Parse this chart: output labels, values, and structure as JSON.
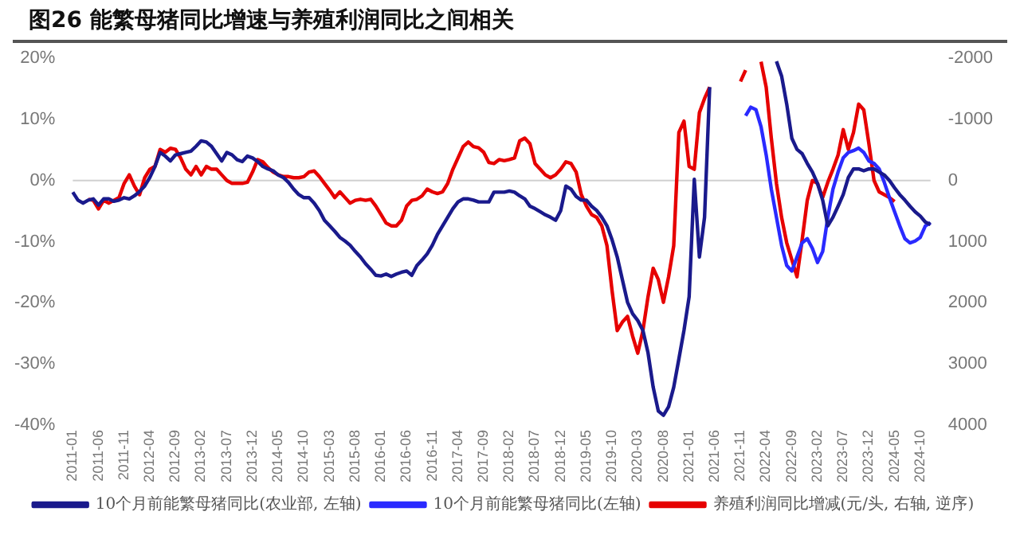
{
  "chart_data": {
    "type": "line",
    "title": "图26 能繁母猪同比增速与养殖利润同比之间相关",
    "categories": [
      "2011-01",
      null,
      null,
      null,
      null,
      "2011-06",
      null,
      null,
      null,
      null,
      "2011-11",
      null,
      null,
      null,
      null,
      "2012-04",
      null,
      null,
      null,
      null,
      "2012-09",
      null,
      null,
      null,
      null,
      "2013-02",
      null,
      null,
      null,
      null,
      "2013-07",
      null,
      null,
      null,
      null,
      "2013-12",
      null,
      null,
      null,
      null,
      "2014-05",
      null,
      null,
      null,
      null,
      "2014-10",
      null,
      null,
      null,
      null,
      "2015-03",
      null,
      null,
      null,
      null,
      "2015-08",
      null,
      null,
      null,
      null,
      "2016-01",
      null,
      null,
      null,
      null,
      "2016-06",
      null,
      null,
      null,
      null,
      "2016-11",
      null,
      null,
      null,
      null,
      "2017-04",
      null,
      null,
      null,
      null,
      "2017-09",
      null,
      null,
      null,
      null,
      "2018-02",
      null,
      null,
      null,
      null,
      "2018-07",
      null,
      null,
      null,
      null,
      "2018-12",
      null,
      null,
      null,
      null,
      "2019-05",
      null,
      null,
      null,
      null,
      "2019-10",
      null,
      null,
      null,
      null,
      "2020-03",
      null,
      null,
      null,
      null,
      "2020-08",
      null,
      null,
      null,
      null,
      "2021-01",
      null,
      null,
      null,
      null,
      "2021-06",
      null,
      null,
      null,
      null,
      "2021-11",
      null,
      null,
      null,
      null,
      "2022-04",
      null,
      null,
      null,
      null,
      "2022-09",
      null,
      null,
      null,
      null,
      "2023-02",
      null,
      null,
      null,
      null,
      "2023-07",
      null,
      null,
      null,
      null,
      "2023-12",
      null,
      null,
      null,
      null,
      "2024-05",
      null,
      null,
      null,
      null,
      "2024-10",
      null,
      null
    ],
    "series": [
      {
        "name": "10个月前能繁母猪同比(农业部, 左轴)",
        "color": "#1a1a8c",
        "values": [
          -1.9,
          -3.2,
          -3.7,
          -3.2,
          -3,
          -4,
          -3,
          -3,
          -3.4,
          -3.2,
          -2.8,
          -3,
          -2.5,
          -1.8,
          -0.9,
          0.5,
          2.3,
          4.6,
          4.0,
          3.2,
          4.2,
          4.4,
          4.6,
          4.8,
          5.6,
          6.5,
          6.3,
          5.6,
          4.4,
          3.2,
          4.6,
          4.2,
          3.4,
          3.1,
          4.0,
          3.7,
          3.1,
          2.3,
          1.9,
          1.6,
          0.9,
          0.5,
          -0.3,
          -1.4,
          -2.3,
          -2.8,
          -2.8,
          -3.7,
          -4.9,
          -6.5,
          -7.4,
          -8.3,
          -9.3,
          -9.9,
          -10.6,
          -11.6,
          -12.5,
          -13.6,
          -14.5,
          -15.5,
          -15.6,
          -15.3,
          -15.7,
          -15.3,
          -15,
          -14.8,
          -15.5,
          -13.9,
          -13,
          -12,
          -10.6,
          -8.8,
          -7.4,
          -6,
          -4.6,
          -3.5,
          -3,
          -3,
          -3.2,
          -3.5,
          -3.5,
          -3.5,
          -1.9,
          -1.9,
          -1.9,
          -1.7,
          -1.9,
          -2.5,
          -3,
          -4.2,
          -4.6,
          -5.1,
          -5.6,
          -6,
          -6.5,
          -4.9,
          -0.9,
          -1.4,
          -2.6,
          -3.2,
          -3.2,
          -4.2,
          -4.9,
          -6,
          -7.4,
          -9.7,
          -12.5,
          -16.2,
          -19.9,
          -21.8,
          -22.9,
          -24.5,
          -28.2,
          -33.8,
          -37.7,
          -38.4,
          -37,
          -33.8,
          -29.2,
          -24.5,
          -19,
          0.2,
          -12.5,
          -6,
          15.3,
          null,
          null,
          null,
          null,
          null,
          null,
          null,
          null,
          null,
          null,
          null,
          null,
          19.5,
          17.1,
          12.5,
          6.9,
          5.1,
          4.4,
          2.8,
          1.4,
          -0.5,
          -3.2,
          -7.4,
          -6,
          -4.2,
          -2.3,
          0.5,
          1.9,
          1.9,
          1.6,
          1.9,
          1.9,
          1.4,
          0.9,
          0,
          -1.2,
          -2.3,
          -3.2,
          -4.2,
          -5.1,
          -5.8,
          -6.8,
          -7.2
        ]
      },
      {
        "name": "10个月前能繁母猪同比(左轴)",
        "color": "#2a2aff",
        "values": [
          null,
          null,
          null,
          null,
          null,
          null,
          null,
          null,
          null,
          null,
          null,
          null,
          null,
          null,
          null,
          null,
          null,
          null,
          null,
          null,
          null,
          null,
          null,
          null,
          null,
          null,
          null,
          null,
          null,
          null,
          null,
          null,
          null,
          null,
          null,
          null,
          null,
          null,
          null,
          null,
          null,
          null,
          null,
          null,
          null,
          null,
          null,
          null,
          null,
          null,
          null,
          null,
          null,
          null,
          null,
          null,
          null,
          null,
          null,
          null,
          null,
          null,
          null,
          null,
          null,
          null,
          null,
          null,
          null,
          null,
          null,
          null,
          null,
          null,
          null,
          null,
          null,
          null,
          null,
          null,
          null,
          null,
          null,
          null,
          null,
          null,
          null,
          null,
          null,
          null,
          null,
          null,
          null,
          null,
          null,
          null,
          null,
          null,
          null,
          null,
          null,
          null,
          null,
          null,
          null,
          null,
          null,
          null,
          null,
          null,
          null,
          null,
          null,
          null,
          null,
          null,
          null,
          null,
          null,
          null,
          null,
          null,
          null,
          null,
          null,
          null,
          null,
          null,
          null,
          null,
          null,
          10.6,
          12,
          11.6,
          8.8,
          4.2,
          -1.4,
          -6,
          -10.6,
          -13.9,
          -14.8,
          -12.5,
          -10.2,
          -9.5,
          -11.1,
          -13.4,
          -11.6,
          -6,
          -1.4,
          1.4,
          3.7,
          4.6,
          4.9,
          5.3,
          4.6,
          3.2,
          2.8,
          1.9,
          -0.3,
          -2.8,
          -5.1,
          -7.4,
          -9.5,
          -10.2,
          -9.9,
          -9.3,
          -7.4,
          -6.9
        ]
      },
      {
        "name": "养殖利润同比增减(元/头, 右轴, 逆序)",
        "color": "#e60000",
        "axis": "y2",
        "values": [
          null,
          null,
          null,
          306,
          324,
          463,
          324,
          370,
          324,
          278,
          46,
          -93,
          93,
          231,
          -46,
          -185,
          -231,
          -509,
          -463,
          -528,
          -509,
          -370,
          -185,
          -93,
          -231,
          -93,
          -231,
          -185,
          -185,
          -93,
          0,
          46,
          46,
          46,
          28,
          -139,
          -343,
          -306,
          -213,
          -139,
          -93,
          -65,
          -65,
          -46,
          -46,
          -65,
          -139,
          -157,
          -65,
          46,
          157,
          278,
          185,
          278,
          370,
          324,
          306,
          324,
          306,
          417,
          556,
          694,
          741,
          741,
          648,
          417,
          324,
          306,
          250,
          139,
          185,
          213,
          185,
          46,
          -185,
          -370,
          -556,
          -630,
          -556,
          -537,
          -463,
          -296,
          -278,
          -343,
          -324,
          -343,
          -370,
          -648,
          -694,
          -602,
          -278,
          -185,
          -93,
          -46,
          -93,
          -185,
          -306,
          -278,
          -139,
          231,
          417,
          556,
          602,
          741,
          1065,
          1806,
          2454,
          2315,
          2222,
          2546,
          2824,
          2454,
          1898,
          1435,
          1620,
          1991,
          1574,
          1065,
          -787,
          -972,
          -231,
          -185,
          -1111,
          -1343,
          -1528,
          null,
          null,
          null,
          null,
          null,
          -1620,
          -1806,
          null,
          null,
          -1944,
          -1528,
          -694,
          46,
          602,
          1019,
          1296,
          1574,
          972,
          324,
          0,
          46,
          278,
          28,
          -185,
          -417,
          -833,
          -509,
          -787,
          -1250,
          -1157,
          -602,
          0,
          185,
          231,
          278,
          343,
          null,
          null,
          null,
          null,
          null,
          null,
          null
        ]
      }
    ],
    "ylim": [
      -40,
      20
    ],
    "yticks": [
      {
        "value": -40,
        "label": "-40%"
      },
      {
        "value": -30,
        "label": "-30%"
      },
      {
        "value": -20,
        "label": "-20%"
      },
      {
        "value": -10,
        "label": "-10%"
      },
      {
        "value": 0,
        "label": "0%"
      },
      {
        "value": 10,
        "label": "10%"
      },
      {
        "value": 20,
        "label": "20%"
      }
    ],
    "y2lim": [
      4000,
      -2000
    ],
    "y2ticks": [
      -2000,
      -1000,
      0,
      1000,
      2000,
      3000,
      4000
    ],
    "ref_lines": [
      {
        "axis": "y",
        "value": 0,
        "color": "#d0d0d0"
      }
    ],
    "grid": false,
    "legend": "bottom",
    "marker": "none",
    "line_style": "solid"
  }
}
